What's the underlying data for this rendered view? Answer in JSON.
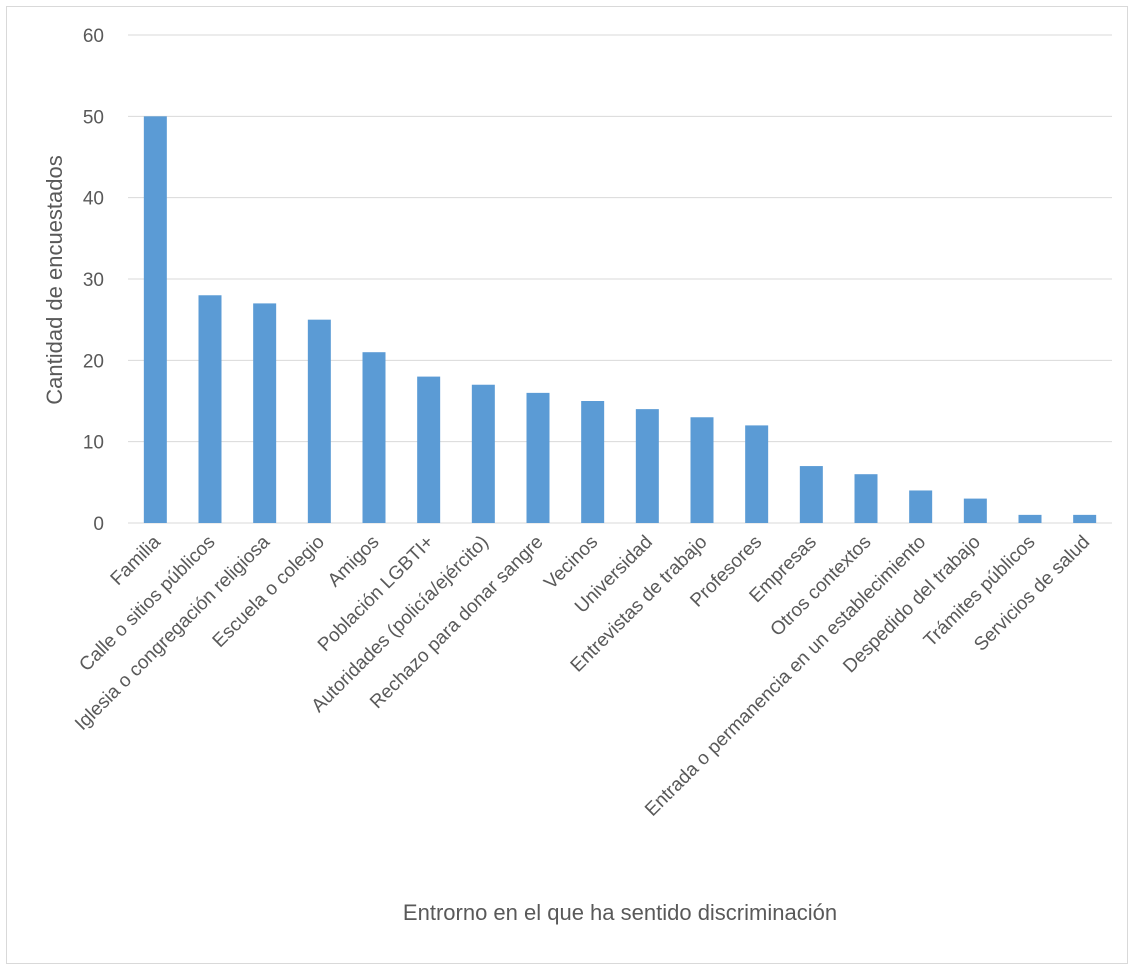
{
  "chart_data": {
    "type": "bar",
    "title": "",
    "xlabel": "Entrorno en el que ha sentido discriminación",
    "ylabel": "Cantidad de encuestados",
    "ylim": [
      0,
      60
    ],
    "yticks": [
      0,
      10,
      20,
      30,
      40,
      50,
      60
    ],
    "grid": true,
    "legend": "none",
    "colors": {
      "bar": "#5b9bd5",
      "grid": "#d9d9d9",
      "text": "#595959"
    },
    "categories": [
      "Familia",
      "Calle o sitios públicos",
      "Iglesia o congregación religiosa",
      "Escuela o colegio",
      "Amigos",
      "Población LGBTI+",
      "Autoridades (policía/ejército)",
      "Rechazo para donar sangre",
      "Vecinos",
      "Universidad",
      "Entrevistas de trabajo",
      "Profesores",
      "Empresas",
      "Otros contextos",
      "Entrada o permanencia en un establecimiento",
      "Despedido del trabajo",
      "Trámites públicos",
      "Servicios de salud"
    ],
    "values": [
      50,
      28,
      27,
      25,
      21,
      18,
      17,
      16,
      15,
      14,
      13,
      12,
      7,
      6,
      4,
      3,
      1,
      1
    ]
  }
}
